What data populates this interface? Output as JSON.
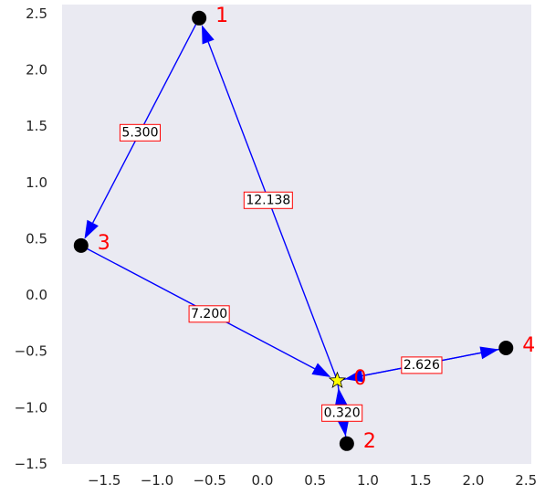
{
  "chart_data": {
    "type": "network",
    "xlim": [
      -1.9,
      2.55
    ],
    "ylim": [
      -1.5,
      2.58
    ],
    "xticks": [
      -1.5,
      -1.0,
      -0.5,
      0.0,
      0.5,
      1.0,
      1.5,
      2.0,
      2.5
    ],
    "xtick_labels": [
      "−1.5",
      "−1.0",
      "−0.5",
      "0.0",
      "0.5",
      "1.0",
      "1.5",
      "2.0",
      "2.5"
    ],
    "yticks": [
      -1.5,
      -1.0,
      -0.5,
      0.0,
      0.5,
      1.0,
      1.5,
      2.0,
      2.5
    ],
    "ytick_labels": [
      "−1.5",
      "−1.0",
      "−0.5",
      "0.0",
      "0.5",
      "1.0",
      "1.5",
      "2.0",
      "2.5"
    ],
    "grid": false,
    "nodes": [
      {
        "id": "0",
        "label": "0",
        "x": 0.71,
        "y": -0.76,
        "shape": "star"
      },
      {
        "id": "1",
        "label": "1",
        "x": -0.6,
        "y": 2.46,
        "shape": "circle"
      },
      {
        "id": "2",
        "label": "2",
        "x": 0.8,
        "y": -1.32,
        "shape": "circle"
      },
      {
        "id": "3",
        "label": "3",
        "x": -1.72,
        "y": 0.44,
        "shape": "circle"
      },
      {
        "id": "4",
        "label": "4",
        "x": 2.31,
        "y": -0.47,
        "shape": "circle"
      }
    ],
    "edges": [
      {
        "from": "0",
        "to": "1",
        "label": "12.138"
      },
      {
        "from": "1",
        "to": "3",
        "label": "5.300"
      },
      {
        "from": "3",
        "to": "0",
        "label": "7.200"
      },
      {
        "from": "2",
        "to": "0",
        "label": "0.320"
      },
      {
        "from": "0",
        "to": "2",
        "label": ""
      },
      {
        "from": "0",
        "to": "4",
        "label": "2.626"
      },
      {
        "from": "4",
        "to": "0",
        "label": ""
      }
    ],
    "colors": {
      "background": "#eaeaf2",
      "edge": "#0000ff",
      "node": "#000000",
      "star": "#ffff00",
      "node_label": "#ff0000",
      "edge_label_border": "#ff0000"
    }
  }
}
